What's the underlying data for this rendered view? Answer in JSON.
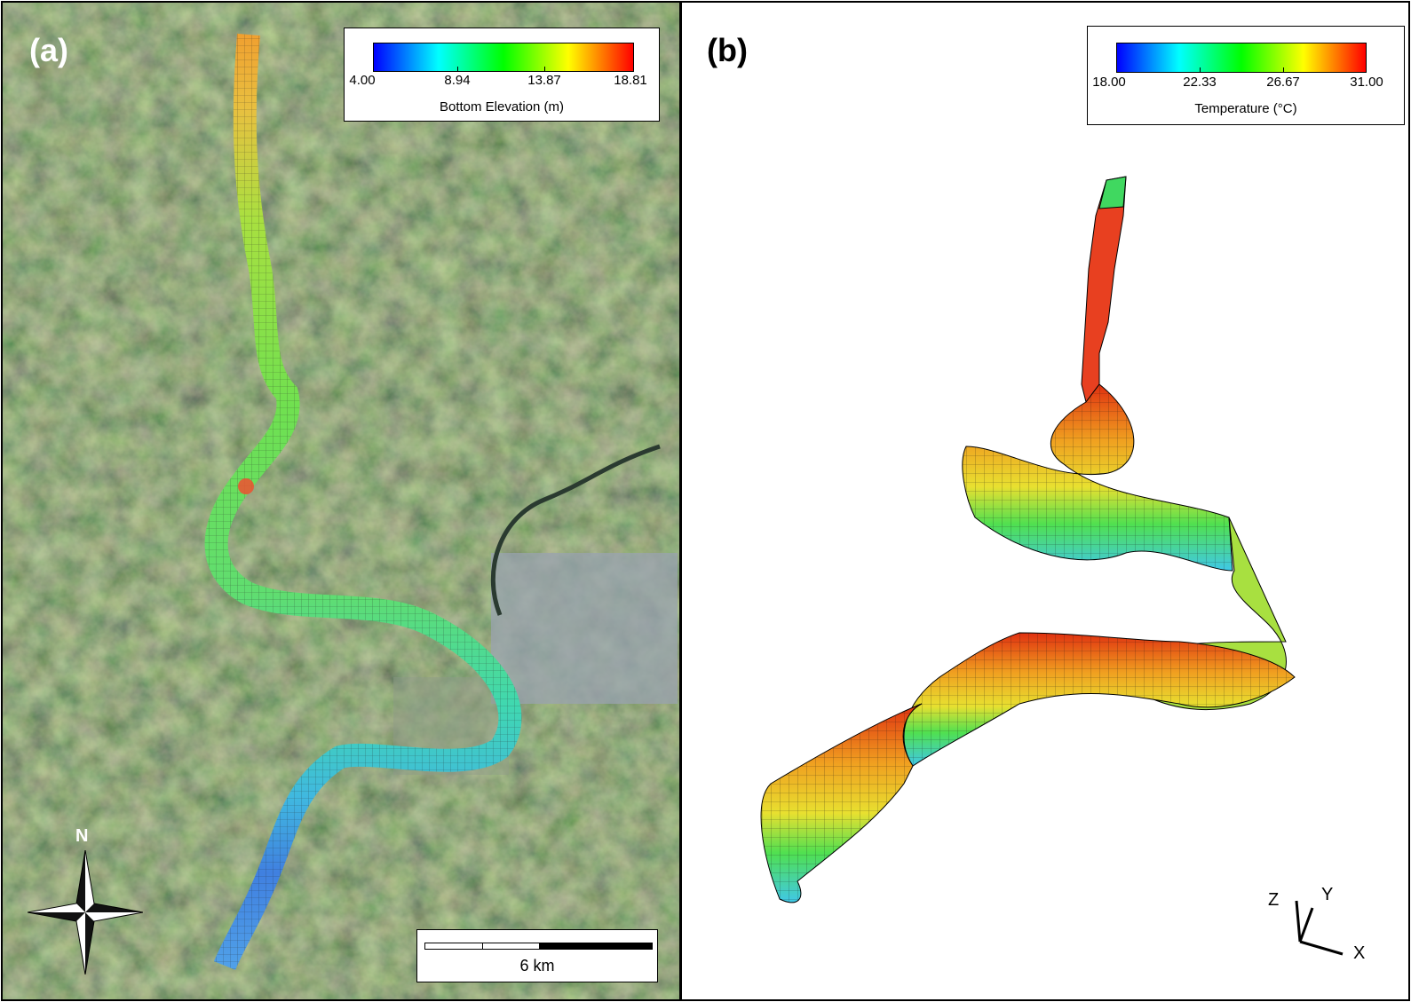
{
  "panel_a": {
    "label": "(a)",
    "legend": {
      "title": "Bottom Elevation (m)",
      "ticks": [
        "4.00",
        "8.94",
        "13.87",
        "18.81"
      ],
      "min": 4.0,
      "max": 18.81
    },
    "scale_bar": {
      "label": "6 km"
    },
    "north_arrow": {
      "label": "N",
      "icon": "compass-rose-icon"
    }
  },
  "panel_b": {
    "label": "(b)",
    "legend": {
      "title": "Temperature (°C)",
      "ticks": [
        "18.00",
        "22.33",
        "26.67",
        "31.00"
      ],
      "min": 18.0,
      "max": 31.0
    },
    "axes": {
      "z": "Z",
      "y": "Y",
      "x": "X"
    }
  },
  "colors": {
    "colormap": [
      "#0000ff",
      "#00ffff",
      "#00ff00",
      "#ffff00",
      "#ff0000"
    ],
    "terrain": "#3e4a30"
  }
}
